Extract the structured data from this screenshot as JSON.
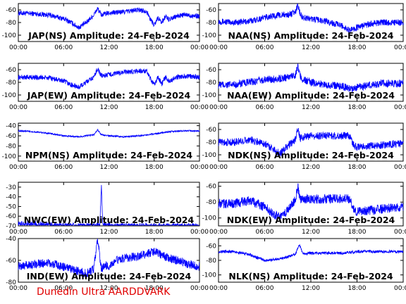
{
  "footer": "Dunedin Ultra AARDDVARK",
  "colors": {
    "trace": "#0000ff",
    "axis": "#000000",
    "footer": "#e00000"
  },
  "x_tick_labels": [
    "00:00",
    "06:00",
    "12:00",
    "18:00",
    "00:00"
  ],
  "chart_data": [
    {
      "type": "line",
      "title": "JAP(NS) Amplitude: 24-Feb-2024",
      "ylim": [
        -110,
        -50
      ],
      "yticks": [
        -60,
        -80,
        -100
      ],
      "x_hours": [
        0,
        2,
        4,
        6,
        7,
        8,
        9,
        10,
        10.5,
        11,
        12,
        14,
        16,
        17,
        17.5,
        18,
        18.5,
        19,
        19.5,
        20,
        21,
        22,
        24
      ],
      "y": [
        -65,
        -66,
        -68,
        -74,
        -80,
        -88,
        -80,
        -68,
        -58,
        -68,
        -65,
        -63,
        -60,
        -62,
        -75,
        -84,
        -72,
        -80,
        -70,
        -76,
        -70,
        -68,
        -70
      ]
    },
    {
      "type": "line",
      "title": "NAA(NS) Amplitude: 24-Feb-2024",
      "ylim": [
        -110,
        -50
      ],
      "yticks": [
        -60,
        -80,
        -100
      ],
      "x_hours": [
        0,
        2,
        4,
        6,
        8,
        9,
        10,
        10.3,
        10.6,
        11,
        12,
        14,
        16,
        17,
        18,
        19,
        20,
        21,
        22,
        24
      ],
      "y": [
        -78,
        -80,
        -78,
        -72,
        -68,
        -68,
        -64,
        -52,
        -66,
        -72,
        -74,
        -78,
        -85,
        -92,
        -88,
        -84,
        -82,
        -80,
        -80,
        -80
      ]
    },
    {
      "type": "line",
      "title": "JAP(EW) Amplitude: 24-Feb-2024",
      "ylim": [
        -110,
        -50
      ],
      "yticks": [
        -60,
        -80,
        -100
      ],
      "x_hours": [
        0,
        2,
        4,
        6,
        7,
        8,
        9,
        10,
        10.5,
        11,
        12,
        14,
        16,
        17,
        17.5,
        18,
        18.5,
        19,
        19.5,
        20,
        21,
        22,
        24
      ],
      "y": [
        -72,
        -72,
        -73,
        -78,
        -84,
        -88,
        -80,
        -72,
        -58,
        -70,
        -68,
        -64,
        -62,
        -63,
        -75,
        -84,
        -72,
        -82,
        -72,
        -78,
        -72,
        -70,
        -72
      ]
    },
    {
      "type": "line",
      "title": "NAA(EW) Amplitude: 24-Feb-2024",
      "ylim": [
        -110,
        -50
      ],
      "yticks": [
        -60,
        -80,
        -100
      ],
      "x_hours": [
        0,
        2,
        4,
        6,
        8,
        9,
        10,
        10.3,
        10.6,
        11,
        12,
        14,
        16,
        17,
        18,
        19,
        20,
        21,
        22,
        24
      ],
      "y": [
        -84,
        -84,
        -80,
        -76,
        -74,
        -72,
        -68,
        -54,
        -70,
        -76,
        -80,
        -84,
        -86,
        -90,
        -88,
        -86,
        -84,
        -82,
        -82,
        -82
      ]
    },
    {
      "type": "line",
      "title": "NPM(NS) Amplitude: 24-Feb-2024",
      "ylim": [
        -110,
        -35
      ],
      "yticks": [
        -40,
        -60,
        -80,
        -100
      ],
      "x_hours": [
        0,
        2,
        4,
        6,
        8,
        10,
        10.5,
        11,
        12,
        14,
        16,
        18,
        20,
        22,
        24
      ],
      "y": [
        -50,
        -52,
        -55,
        -60,
        -62,
        -58,
        -48,
        -58,
        -60,
        -62,
        -60,
        -56,
        -52,
        -50,
        -50
      ]
    },
    {
      "type": "line",
      "title": "NDK(NS) Amplitude: 24-Feb-2024",
      "ylim": [
        -110,
        -50
      ],
      "yticks": [
        -60,
        -80,
        -100
      ],
      "x_hours": [
        0,
        2,
        4,
        6,
        7,
        8,
        9,
        10,
        10.3,
        10.6,
        11,
        12,
        14,
        16,
        17,
        17.5,
        18,
        20,
        22,
        24
      ],
      "y": [
        -80,
        -80,
        -76,
        -82,
        -90,
        -98,
        -86,
        -76,
        -58,
        -74,
        -72,
        -70,
        -70,
        -70,
        -70,
        -84,
        -88,
        -86,
        -84,
        -82
      ]
    },
    {
      "type": "line",
      "title": "NWC(EW) Amplitude: 24-Feb-2024",
      "ylim": [
        -70,
        -25
      ],
      "yticks": [
        -30,
        -40,
        -50,
        -60,
        -70
      ],
      "x_hours": [
        0,
        2,
        4,
        6,
        8,
        10,
        10.8,
        11,
        11.2,
        12,
        14,
        16,
        18,
        20,
        22,
        24
      ],
      "y": [
        -68,
        -68,
        -69,
        -70,
        -70,
        -70,
        -70,
        -28,
        -70,
        -70,
        -70,
        -70,
        -70,
        -70,
        -70,
        -70
      ]
    },
    {
      "type": "line",
      "title": "NDK(EW) Amplitude: 24-Feb-2024",
      "ylim": [
        -110,
        -55
      ],
      "yticks": [
        -60,
        -80,
        -100
      ],
      "x_hours": [
        0,
        2,
        4,
        6,
        7,
        8,
        9,
        10,
        10.3,
        10.6,
        11,
        12,
        14,
        16,
        17,
        17.5,
        18,
        20,
        22,
        24
      ],
      "y": [
        -82,
        -82,
        -78,
        -86,
        -94,
        -100,
        -90,
        -76,
        -60,
        -78,
        -76,
        -76,
        -76,
        -76,
        -76,
        -88,
        -92,
        -90,
        -88,
        -86
      ]
    },
    {
      "type": "line",
      "title": "IND(EW) Amplitude: 24-Feb-2024",
      "ylim": [
        -80,
        -40
      ],
      "yticks": [
        -40,
        -60,
        -80
      ],
      "x_hours": [
        0,
        2,
        4,
        6,
        8,
        9,
        10,
        10.5,
        11,
        11.5,
        12,
        13,
        14,
        16,
        18,
        20,
        22,
        24
      ],
      "y": [
        -65,
        -64,
        -62,
        -66,
        -70,
        -72,
        -68,
        -40,
        -68,
        -64,
        -66,
        -60,
        -58,
        -56,
        -52,
        -58,
        -62,
        -66
      ]
    },
    {
      "type": "line",
      "title": "NLK(NS) Amplitude: 24-Feb-2024",
      "ylim": [
        -110,
        -50
      ],
      "yticks": [
        -60,
        -80,
        -100
      ],
      "x_hours": [
        0,
        2,
        4,
        6,
        8,
        10,
        10.5,
        11,
        12,
        14,
        16,
        18,
        20,
        22,
        24
      ],
      "y": [
        -68,
        -68,
        -72,
        -80,
        -78,
        -72,
        -58,
        -72,
        -70,
        -70,
        -70,
        -68,
        -68,
        -68,
        -68
      ]
    }
  ]
}
